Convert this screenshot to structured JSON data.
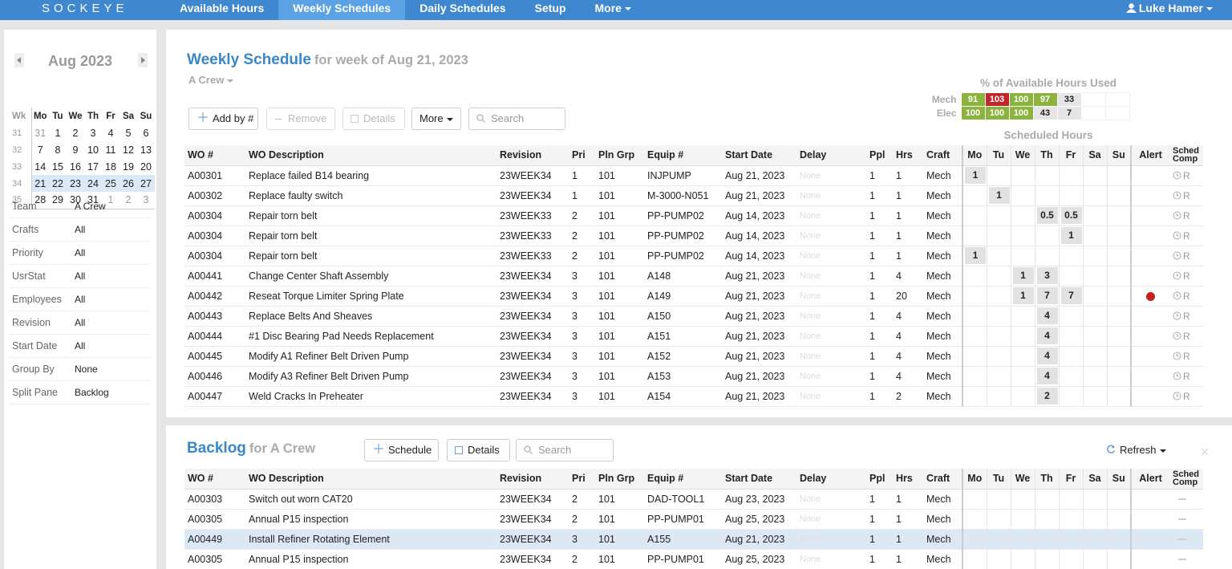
{
  "nav": {
    "brand": "SOCKEYE",
    "items": [
      "Available Hours",
      "Weekly Schedules",
      "Daily Schedules",
      "Setup",
      "More"
    ],
    "active": 1,
    "user": "Luke Hamer"
  },
  "calendar": {
    "month": "Aug 2023",
    "headers": [
      "Wk",
      "Mo",
      "Tu",
      "We",
      "Th",
      "Fr",
      "Sa",
      "Su"
    ],
    "weeks": [
      [
        31,
        31,
        1,
        2,
        3,
        4,
        5,
        6
      ],
      [
        32,
        7,
        8,
        9,
        10,
        11,
        12,
        13
      ],
      [
        33,
        14,
        15,
        16,
        17,
        18,
        19,
        20
      ],
      [
        34,
        21,
        22,
        23,
        24,
        25,
        26,
        27
      ],
      [
        35,
        28,
        29,
        30,
        31,
        1,
        2,
        3
      ]
    ],
    "current_week": 3
  },
  "filters": [
    [
      "Team",
      "A Crew"
    ],
    [
      "Crafts",
      "All"
    ],
    [
      "Priority",
      "All"
    ],
    [
      "UsrStat",
      "All"
    ],
    [
      "Employees",
      "All"
    ],
    [
      "Revision",
      "All"
    ],
    [
      "Start Date",
      "All"
    ],
    [
      "Group By",
      "None"
    ],
    [
      "Split Pane",
      "Backlog"
    ]
  ],
  "weekly": {
    "title": "Weekly Schedule",
    "subtitle": "for week of Aug 21, 2023",
    "crew": "A Crew",
    "buttons": [
      "Add by #",
      "Remove",
      "Details",
      "More"
    ],
    "search": "Search",
    "usage": {
      "title": "% of Available Hours Used",
      "rows": [
        {
          "label": "Mech",
          "values": [
            91,
            103,
            100,
            97,
            33
          ],
          "colors": [
            "#8db33f",
            "#c0272d",
            "#8db33f",
            "#8db33f",
            "#e6e6e6"
          ]
        },
        {
          "label": "Elec",
          "values": [
            100,
            100,
            100,
            43,
            7
          ],
          "colors": [
            "#8db33f",
            "#8db33f",
            "#8db33f",
            "#e6e6e6",
            "#e6e6e6"
          ]
        }
      ]
    },
    "scheduled_label": "Scheduled Hours",
    "columns": [
      "WO #",
      "WO Description",
      "Revision",
      "Pri",
      "Pln Grp",
      "Equip #",
      "Start Date",
      "Delay",
      "Ppl",
      "Hrs",
      "Craft",
      "Mo",
      "Tu",
      "We",
      "Th",
      "Fr",
      "Sa",
      "Su",
      "Alert",
      "Sched Comp"
    ],
    "rows": [
      {
        "wo": "A00301",
        "desc": "Replace failed B14 bearing",
        "rev": "23WEEK34",
        "pri": 1,
        "grp": 101,
        "equip": "INJPUMP",
        "start": "Aug 21, 2023",
        "delay": "None",
        "ppl": 1,
        "hrs": 1,
        "craft": "Mech",
        "days": [
          1,
          null,
          null,
          null,
          null,
          null,
          null
        ],
        "alert": false,
        "comp": "R"
      },
      {
        "wo": "A00302",
        "desc": "Replace faulty switch",
        "rev": "23WEEK34",
        "pri": 1,
        "grp": 101,
        "equip": "M-3000-N051",
        "start": "Aug 21, 2023",
        "delay": "None",
        "ppl": 1,
        "hrs": 1,
        "craft": "Mech",
        "days": [
          null,
          1,
          null,
          null,
          null,
          null,
          null
        ],
        "alert": false,
        "comp": "R"
      },
      {
        "wo": "A00304",
        "desc": "Repair torn belt",
        "rev": "23WEEK33",
        "pri": 2,
        "grp": 101,
        "equip": "PP-PUMP02",
        "start": "Aug 14, 2023",
        "delay": "None",
        "ppl": 1,
        "hrs": 1,
        "craft": "Mech",
        "days": [
          null,
          null,
          null,
          0.5,
          0.5,
          null,
          null
        ],
        "alert": false,
        "comp": "R"
      },
      {
        "wo": "A00304",
        "desc": "Repair torn belt",
        "rev": "23WEEK33",
        "pri": 2,
        "grp": 101,
        "equip": "PP-PUMP02",
        "start": "Aug 14, 2023",
        "delay": "None",
        "ppl": 1,
        "hrs": 1,
        "craft": "Mech",
        "days": [
          null,
          null,
          null,
          null,
          1,
          null,
          null
        ],
        "alert": false,
        "comp": "R"
      },
      {
        "wo": "A00304",
        "desc": "Repair torn belt",
        "rev": "23WEEK33",
        "pri": 2,
        "grp": 101,
        "equip": "PP-PUMP02",
        "start": "Aug 14, 2023",
        "delay": "None",
        "ppl": 1,
        "hrs": 1,
        "craft": "Mech",
        "days": [
          1,
          null,
          null,
          null,
          null,
          null,
          null
        ],
        "alert": false,
        "comp": "R"
      },
      {
        "wo": "A00441",
        "desc": "Change Center Shaft Assembly",
        "rev": "23WEEK34",
        "pri": 3,
        "grp": 101,
        "equip": "A148",
        "start": "Aug 21, 2023",
        "delay": "None",
        "ppl": 1,
        "hrs": 4,
        "craft": "Mech",
        "days": [
          null,
          null,
          1,
          3,
          null,
          null,
          null
        ],
        "alert": false,
        "comp": "R"
      },
      {
        "wo": "A00442",
        "desc": "Reseat Torque Limiter Spring Plate",
        "rev": "23WEEK34",
        "pri": 3,
        "grp": 101,
        "equip": "A149",
        "start": "Aug 21, 2023",
        "delay": "None",
        "ppl": 1,
        "hrs": 20,
        "craft": "Mech",
        "days": [
          null,
          null,
          1,
          7,
          7,
          null,
          null
        ],
        "alert": true,
        "comp": "R"
      },
      {
        "wo": "A00443",
        "desc": "Replace Belts And Sheaves",
        "rev": "23WEEK34",
        "pri": 3,
        "grp": 101,
        "equip": "A150",
        "start": "Aug 21, 2023",
        "delay": "None",
        "ppl": 1,
        "hrs": 4,
        "craft": "Mech",
        "days": [
          null,
          null,
          null,
          4,
          null,
          null,
          null
        ],
        "alert": false,
        "comp": "R"
      },
      {
        "wo": "A00444",
        "desc": "#1 Disc Bearing Pad Needs Replacement",
        "rev": "23WEEK34",
        "pri": 3,
        "grp": 101,
        "equip": "A151",
        "start": "Aug 21, 2023",
        "delay": "None",
        "ppl": 1,
        "hrs": 4,
        "craft": "Mech",
        "days": [
          null,
          null,
          null,
          4,
          null,
          null,
          null
        ],
        "alert": false,
        "comp": "R"
      },
      {
        "wo": "A00445",
        "desc": "Modify A1 Refiner Belt Driven Pump",
        "rev": "23WEEK34",
        "pri": 3,
        "grp": 101,
        "equip": "A152",
        "start": "Aug 21, 2023",
        "delay": "None",
        "ppl": 1,
        "hrs": 4,
        "craft": "Mech",
        "days": [
          null,
          null,
          null,
          4,
          null,
          null,
          null
        ],
        "alert": false,
        "comp": "R"
      },
      {
        "wo": "A00446",
        "desc": "Modify A3 Refiner Belt Driven Pump",
        "rev": "23WEEK34",
        "pri": 3,
        "grp": 101,
        "equip": "A153",
        "start": "Aug 21, 2023",
        "delay": "None",
        "ppl": 1,
        "hrs": 4,
        "craft": "Mech",
        "days": [
          null,
          null,
          null,
          4,
          null,
          null,
          null
        ],
        "alert": false,
        "comp": "R"
      },
      {
        "wo": "A00447",
        "desc": "Weld Cracks In Preheater",
        "rev": "23WEEK34",
        "pri": 3,
        "grp": 101,
        "equip": "A154",
        "start": "Aug 21, 2023",
        "delay": "None",
        "ppl": 1,
        "hrs": 2,
        "craft": "Mech",
        "days": [
          null,
          null,
          null,
          2,
          null,
          null,
          null
        ],
        "alert": false,
        "comp": "R"
      }
    ]
  },
  "backlog": {
    "title": "Backlog",
    "subtitle": "for A Crew",
    "buttons": [
      "Schedule",
      "Details"
    ],
    "search": "Search",
    "refresh": "Refresh",
    "columns": [
      "WO #",
      "WO Description",
      "Revision",
      "Pri",
      "Pln Grp",
      "Equip #",
      "Start Date",
      "Delay",
      "Ppl",
      "Hrs",
      "Craft",
      "Mo",
      "Tu",
      "We",
      "Th",
      "Fr",
      "Sa",
      "Su",
      "Alert",
      "Sched Comp"
    ],
    "selected": 2,
    "rows": [
      {
        "wo": "A00303",
        "desc": "Switch out worn CAT20",
        "rev": "23WEEK34",
        "pri": 2,
        "grp": 101,
        "equip": "DAD-TOOL1",
        "start": "Aug 23, 2023",
        "delay": "None",
        "ppl": 1,
        "hrs": 1,
        "craft": "Mech"
      },
      {
        "wo": "A00305",
        "desc": "Annual P15 inspection",
        "rev": "23WEEK34",
        "pri": 2,
        "grp": 101,
        "equip": "PP-PUMP01",
        "start": "Aug 25, 2023",
        "delay": "None",
        "ppl": 1,
        "hrs": 1,
        "craft": "Mech"
      },
      {
        "wo": "A00449",
        "desc": "Install Refiner Rotating Element",
        "rev": "23WEEK34",
        "pri": 3,
        "grp": 101,
        "equip": "A155",
        "start": "Aug 21, 2023",
        "delay": "None",
        "ppl": 1,
        "hrs": 1,
        "craft": "Mech"
      },
      {
        "wo": "A00305",
        "desc": "Annual P15 inspection",
        "rev": "23WEEK34",
        "pri": 2,
        "grp": 101,
        "equip": "PP-PUMP01",
        "start": "Aug 25, 2023",
        "delay": "None",
        "ppl": 1,
        "hrs": 1,
        "craft": "Mech"
      }
    ]
  }
}
